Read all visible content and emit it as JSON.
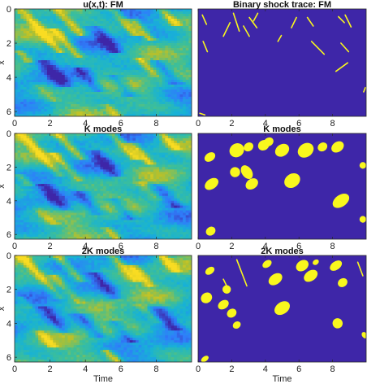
{
  "chart_data": [
    {
      "type": "heatmap",
      "title": "u(x,t): FM",
      "xlabel": "",
      "ylabel": "x",
      "xlim": [
        0,
        10
      ],
      "ylim": [
        0,
        6.28
      ],
      "x_ticks": [
        "0",
        "2",
        "4",
        "6",
        "8"
      ],
      "y_ticks": [
        "0",
        "2",
        "4",
        "6"
      ],
      "colormap": "parula",
      "colors": [
        "#3e26a8",
        "#2f7dfb",
        "#17b2d6",
        "#3fbf96",
        "#b8c02a",
        "#f9dc22"
      ]
    },
    {
      "type": "heatmap",
      "title": "Binary shock trace: FM",
      "xlabel": "",
      "ylabel": "",
      "xlim": [
        0,
        10
      ],
      "ylim": [
        0,
        6.28
      ],
      "x_ticks": [
        "0",
        "2",
        "4",
        "6",
        "8"
      ],
      "y_ticks": [],
      "colors": [
        "#3e26a8",
        "#f9f71d"
      ],
      "shocks": [
        {
          "t0": 0.25,
          "x0": 0.35,
          "t1": 0.5,
          "x1": 0.9
        },
        {
          "t0": 0.3,
          "x0": 1.9,
          "t1": 0.55,
          "x1": 2.5
        },
        {
          "t0": 1.9,
          "x0": 0.8,
          "t1": 1.5,
          "x1": 1.6
        },
        {
          "t0": 2.1,
          "x0": 0.25,
          "t1": 2.45,
          "x1": 1.3
        },
        {
          "t0": 2.7,
          "x0": 1.0,
          "t1": 3.05,
          "x1": 1.6
        },
        {
          "t0": 3.55,
          "x0": 0.25,
          "t1": 3.3,
          "x1": 0.7
        },
        {
          "t0": 3.05,
          "x0": 0.5,
          "t1": 3.5,
          "x1": 1.1
        },
        {
          "t0": 4.75,
          "x0": 1.9,
          "t1": 4.95,
          "x1": 1.55
        },
        {
          "t0": 5.85,
          "x0": 0.5,
          "t1": 5.55,
          "x1": 1.1
        },
        {
          "t0": 6.5,
          "x0": 0.5,
          "t1": 6.85,
          "x1": 1.0
        },
        {
          "t0": 7.5,
          "x0": 2.65,
          "t1": 6.75,
          "x1": 1.9
        },
        {
          "t0": 8.35,
          "x0": 0.45,
          "t1": 8.7,
          "x1": 0.8
        },
        {
          "t0": 8.75,
          "x0": 0.35,
          "t1": 9.1,
          "x1": 1.05
        },
        {
          "t0": 8.5,
          "x0": 2.0,
          "t1": 8.95,
          "x1": 2.5
        },
        {
          "t0": 8.9,
          "x0": 3.15,
          "t1": 8.2,
          "x1": 3.65
        },
        {
          "t0": 9.85,
          "x0": 4.85,
          "t1": 9.95,
          "x1": 4.6
        },
        {
          "t0": 0.1,
          "x0": 6.1,
          "t1": 0.4,
          "x1": 6.2
        }
      ]
    },
    {
      "type": "heatmap",
      "title": "K modes",
      "xlabel": "",
      "ylabel": "x",
      "xlim": [
        0,
        10
      ],
      "ylim": [
        0,
        6.28
      ],
      "x_ticks": [
        "0",
        "2",
        "4",
        "6",
        "8"
      ],
      "y_ticks": [
        "0",
        "2",
        "4",
        "6"
      ],
      "colormap": "parula",
      "colors": [
        "#3e26a8",
        "#2f7dfb",
        "#17b2d6",
        "#3fbf96",
        "#b8c02a",
        "#f9dc22"
      ]
    },
    {
      "type": "heatmap",
      "title": "K modes",
      "xlabel": "",
      "ylabel": "",
      "xlim": [
        0,
        10
      ],
      "ylim": [
        0,
        6.28
      ],
      "x_ticks": [
        "0",
        "2",
        "4",
        "6",
        "8"
      ],
      "y_ticks": [],
      "colors": [
        "#3e26a8",
        "#f9f71d"
      ],
      "blobs": [
        {
          "t": 0.7,
          "x": 1.4,
          "rt": 0.35,
          "rx": 0.25
        },
        {
          "t": 0.8,
          "x": 3.0,
          "rt": 0.45,
          "rx": 0.3
        },
        {
          "t": 0.75,
          "x": 5.8,
          "rt": 0.3,
          "rx": 0.25
        },
        {
          "t": 2.3,
          "x": 1.0,
          "rt": 0.45,
          "rx": 0.4
        },
        {
          "t": 2.2,
          "x": 2.3,
          "rt": 0.3,
          "rx": 0.3
        },
        {
          "t": 2.9,
          "x": 2.3,
          "rt": 0.3,
          "rx": 0.45
        },
        {
          "t": 3.0,
          "x": 0.8,
          "rt": 0.3,
          "rx": 0.25
        },
        {
          "t": 3.9,
          "x": 0.7,
          "rt": 0.35,
          "rx": 0.3
        },
        {
          "t": 3.2,
          "x": 3.0,
          "rt": 0.4,
          "rx": 0.3
        },
        {
          "t": 4.2,
          "x": 0.5,
          "rt": 0.3,
          "rx": 0.25
        },
        {
          "t": 5.0,
          "x": 1.0,
          "rt": 0.45,
          "rx": 0.35
        },
        {
          "t": 5.6,
          "x": 2.8,
          "rt": 0.5,
          "rx": 0.4
        },
        {
          "t": 6.4,
          "x": 1.0,
          "rt": 0.5,
          "rx": 0.4
        },
        {
          "t": 7.4,
          "x": 0.8,
          "rt": 0.3,
          "rx": 0.25
        },
        {
          "t": 8.3,
          "x": 0.8,
          "rt": 0.4,
          "rx": 0.3
        },
        {
          "t": 8.5,
          "x": 4.0,
          "rt": 0.55,
          "rx": 0.35
        },
        {
          "t": 9.8,
          "x": 1.9,
          "rt": 0.2,
          "rx": 0.2
        },
        {
          "t": 9.8,
          "x": 5.1,
          "rt": 0.2,
          "rx": 0.2
        }
      ]
    },
    {
      "type": "heatmap",
      "title": "2K modes",
      "xlabel": "Time",
      "ylabel": "x",
      "xlim": [
        0,
        10
      ],
      "ylim": [
        0,
        6.28
      ],
      "x_ticks": [
        "0",
        "2",
        "4",
        "6",
        "8"
      ],
      "y_ticks": [
        "0",
        "2",
        "4",
        "6"
      ],
      "colormap": "parula",
      "colors": [
        "#3e26a8",
        "#2f7dfb",
        "#17b2d6",
        "#3fbf96",
        "#b8c02a",
        "#f9dc22"
      ]
    },
    {
      "type": "heatmap",
      "title": "2K modes",
      "xlabel": "Time",
      "ylabel": "",
      "xlim": [
        0,
        10
      ],
      "ylim": [
        0,
        6.28
      ],
      "x_ticks": [
        "0",
        "2",
        "4",
        "6",
        "8"
      ],
      "y_ticks": [],
      "colors": [
        "#3e26a8",
        "#f9f71d"
      ],
      "blobs": [
        {
          "t": 0.7,
          "x": 0.9,
          "rt": 0.3,
          "rx": 0.2
        },
        {
          "t": 0.5,
          "x": 2.5,
          "rt": 0.35,
          "rx": 0.3
        },
        {
          "t": 1.7,
          "x": 2.0,
          "rt": 0.25,
          "rx": 0.25
        },
        {
          "t": 1.5,
          "x": 2.9,
          "rt": 0.35,
          "rx": 0.25
        },
        {
          "t": 2.0,
          "x": 3.4,
          "rt": 0.3,
          "rx": 0.25
        },
        {
          "t": 2.3,
          "x": 4.1,
          "rt": 0.25,
          "rx": 0.2
        },
        {
          "t": 4.1,
          "x": 0.5,
          "rt": 0.3,
          "rx": 0.2
        },
        {
          "t": 4.6,
          "x": 1.4,
          "rt": 0.45,
          "rx": 0.3
        },
        {
          "t": 5.0,
          "x": 3.1,
          "rt": 0.5,
          "rx": 0.35
        },
        {
          "t": 6.2,
          "x": 0.6,
          "rt": 0.4,
          "rx": 0.3
        },
        {
          "t": 6.7,
          "x": 1.2,
          "rt": 0.45,
          "rx": 0.3
        },
        {
          "t": 7.0,
          "x": 0.4,
          "rt": 0.2,
          "rx": 0.15
        },
        {
          "t": 8.2,
          "x": 0.6,
          "rt": 0.4,
          "rx": 0.25
        },
        {
          "t": 8.6,
          "x": 1.6,
          "rt": 0.3,
          "rx": 0.25
        },
        {
          "t": 8.3,
          "x": 4.0,
          "rt": 0.3,
          "rx": 0.3
        },
        {
          "t": 0.4,
          "x": 6.1,
          "rt": 0.25,
          "rx": 0.15
        },
        {
          "t": 9.9,
          "x": 4.7,
          "rt": 0.15,
          "rx": 0.2
        }
      ],
      "shocks": [
        {
          "t0": 2.3,
          "x0": 0.25,
          "t1": 2.9,
          "x1": 1.8
        },
        {
          "t0": 1.5,
          "x0": 1.4,
          "t1": 1.8,
          "x1": 2.0
        },
        {
          "t0": 9.5,
          "x0": 0.4,
          "t1": 9.8,
          "x1": 1.2
        }
      ]
    }
  ]
}
